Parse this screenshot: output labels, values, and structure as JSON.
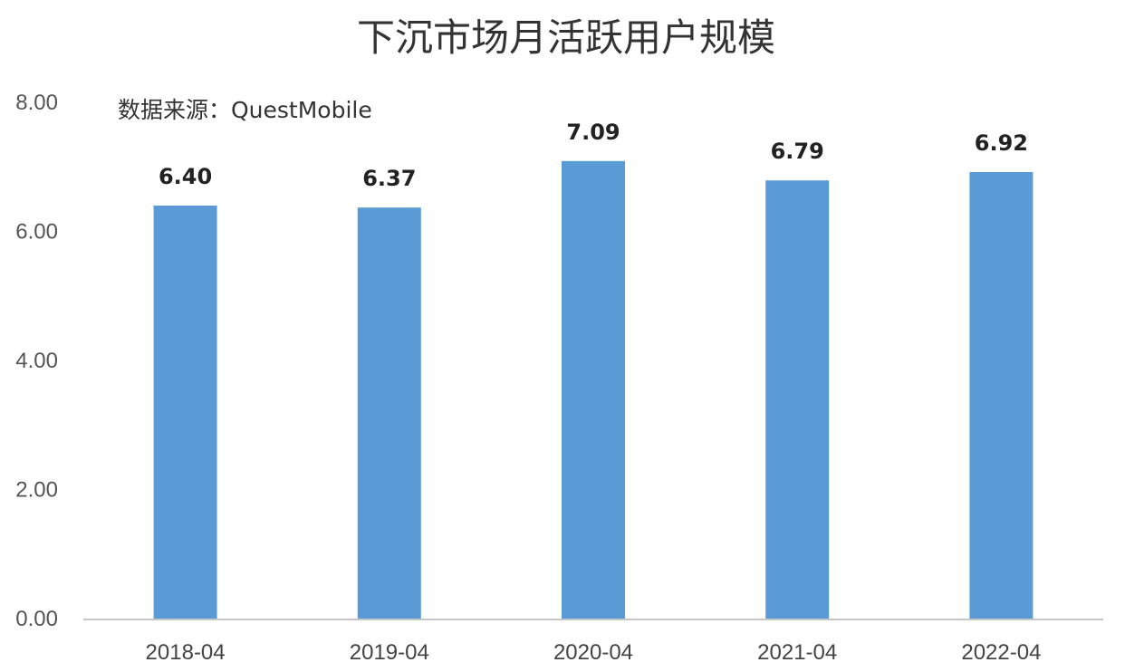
{
  "chart_data": {
    "type": "bar",
    "title": "下沉市场月活跃用户规模",
    "source_note": "数据来源：QuestMobile",
    "categories": [
      "2018-04",
      "2019-04",
      "2020-04",
      "2021-04",
      "2022-04"
    ],
    "values": [
      6.4,
      6.37,
      7.09,
      6.79,
      6.92
    ],
    "data_labels": [
      "6.40",
      "6.37",
      "7.09",
      "6.79",
      "6.92"
    ],
    "y_ticks": [
      "0.00",
      "2.00",
      "4.00",
      "6.00",
      "8.00"
    ],
    "ylim": [
      0,
      8
    ],
    "grid": false,
    "legend": "none",
    "bar_color": "#5b9bd5",
    "axis_color": "#b4b4b4"
  }
}
